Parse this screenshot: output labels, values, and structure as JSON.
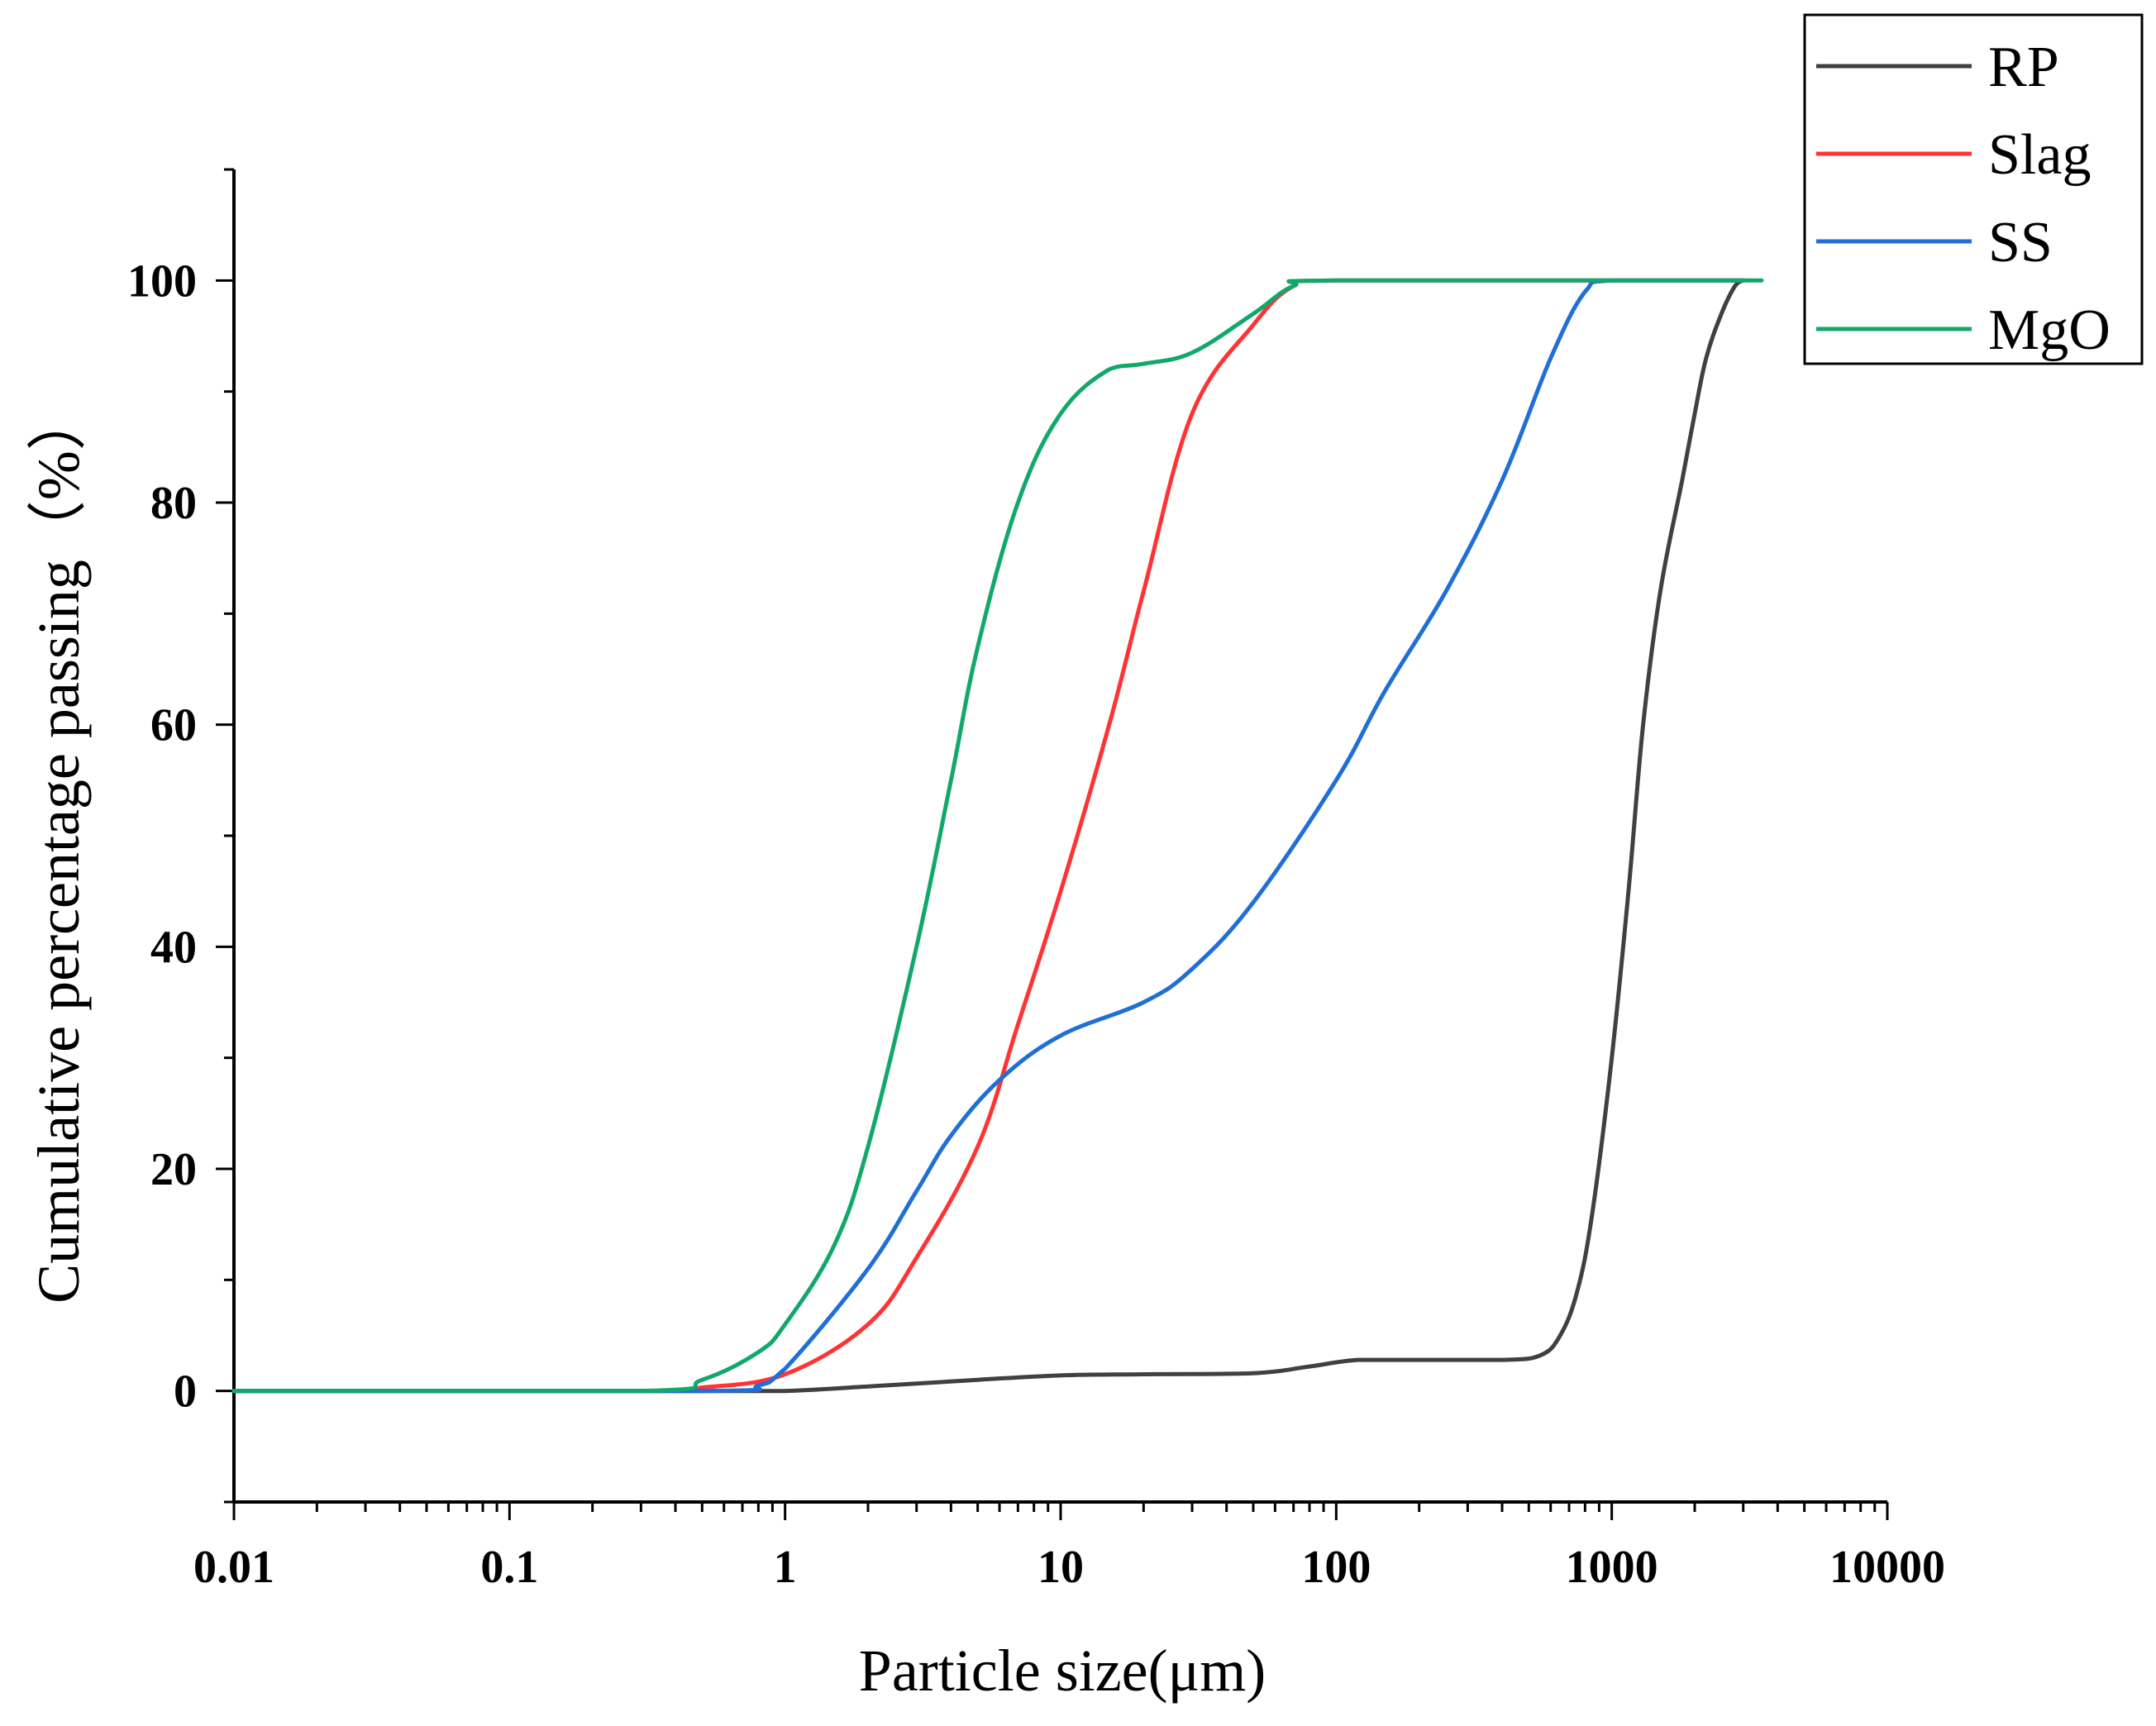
{
  "chart_data": {
    "type": "line",
    "title": "",
    "xlabel": "Particle size(μm)",
    "ylabel": "Cumulative percentage passing（%）",
    "xscale": "log",
    "xlim": [
      0.01,
      10000
    ],
    "ylim": [
      -10,
      110
    ],
    "xticks": [
      0.01,
      0.1,
      1,
      10,
      100,
      1000,
      10000
    ],
    "xtick_labels": [
      "0.01",
      "0.1",
      "1",
      "10",
      "100",
      "1000",
      "10000"
    ],
    "yticks": [
      0,
      20,
      40,
      60,
      80,
      100
    ],
    "ytick_labels": [
      "0",
      "20",
      "40",
      "60",
      "80",
      "100"
    ],
    "grid": false,
    "legend_position": "top-right",
    "series": [
      {
        "name": "RP",
        "color": "#404040",
        "points": [
          [
            0.01,
            0
          ],
          [
            0.5,
            0
          ],
          [
            1,
            0
          ],
          [
            2,
            0.4
          ],
          [
            5,
            1
          ],
          [
            10,
            1.4
          ],
          [
            20,
            1.5
          ],
          [
            50,
            1.6
          ],
          [
            80,
            2.2
          ],
          [
            120,
            2.8
          ],
          [
            200,
            2.8
          ],
          [
            400,
            2.8
          ],
          [
            550,
            3.2
          ],
          [
            650,
            5
          ],
          [
            750,
            9
          ],
          [
            850,
            16
          ],
          [
            1000,
            30
          ],
          [
            1150,
            45
          ],
          [
            1300,
            60
          ],
          [
            1500,
            72
          ],
          [
            1800,
            82
          ],
          [
            2000,
            88
          ],
          [
            2200,
            93
          ],
          [
            2500,
            97
          ],
          [
            2800,
            99.5
          ],
          [
            3000,
            100
          ]
        ]
      },
      {
        "name": "Slag",
        "color": "#ff3333",
        "points": [
          [
            0.01,
            0
          ],
          [
            0.3,
            0
          ],
          [
            0.5,
            0.3
          ],
          [
            1,
            1.5
          ],
          [
            2,
            6
          ],
          [
            3,
            12
          ],
          [
            5,
            22
          ],
          [
            7,
            33
          ],
          [
            10,
            45
          ],
          [
            15,
            60
          ],
          [
            20,
            72
          ],
          [
            30,
            88
          ],
          [
            50,
            96
          ],
          [
            70,
            99.5
          ],
          [
            100,
            100
          ],
          [
            3000,
            100
          ]
        ]
      },
      {
        "name": "SS",
        "color": "#1f6fd6",
        "points": [
          [
            0.01,
            0
          ],
          [
            0.5,
            0
          ],
          [
            0.8,
            0.5
          ],
          [
            1,
            2
          ],
          [
            2,
            11
          ],
          [
            3,
            18
          ],
          [
            4,
            23
          ],
          [
            6,
            28
          ],
          [
            10,
            32
          ],
          [
            20,
            35
          ],
          [
            30,
            38
          ],
          [
            50,
            44
          ],
          [
            100,
            55
          ],
          [
            150,
            63
          ],
          [
            250,
            72
          ],
          [
            400,
            82
          ],
          [
            600,
            93
          ],
          [
            800,
            99
          ],
          [
            1000,
            100
          ],
          [
            3000,
            100
          ]
        ]
      },
      {
        "name": "MgO",
        "color": "#12a86c",
        "points": [
          [
            0.01,
            0
          ],
          [
            0.3,
            0
          ],
          [
            0.5,
            1
          ],
          [
            0.8,
            3.5
          ],
          [
            1,
            6
          ],
          [
            1.5,
            13
          ],
          [
            2,
            22
          ],
          [
            3,
            40
          ],
          [
            4,
            55
          ],
          [
            5,
            67
          ],
          [
            7,
            80
          ],
          [
            10,
            88
          ],
          [
            15,
            92
          ],
          [
            20,
            92.5
          ],
          [
            30,
            93.5
          ],
          [
            50,
            97
          ],
          [
            70,
            99.5
          ],
          [
            100,
            100
          ],
          [
            3500,
            100
          ]
        ]
      }
    ]
  }
}
